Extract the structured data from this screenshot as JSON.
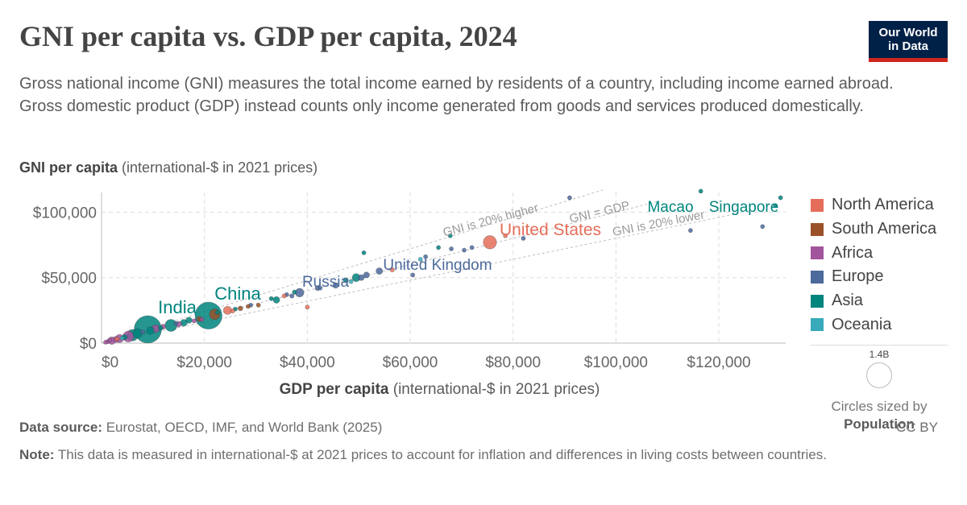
{
  "header": {
    "title": "GNI per capita vs. GDP per capita, 2024",
    "subtitle": "Gross national income (GNI) measures the total income earned by residents of a country, including income earned abroad. Gross domestic product (GDP) instead counts only income generated from goods and services produced domestically.",
    "logo_line1": "Our World",
    "logo_line2": "in Data"
  },
  "axes": {
    "y_label_bold": "GNI per capita",
    "y_label_rest": " (international-$ in 2021 prices)",
    "x_label_bold": "GDP per capita",
    "x_label_rest": " (international-$ in 2021 prices)"
  },
  "legend": {
    "items": [
      {
        "label": "North America",
        "color": "#e56e5a"
      },
      {
        "label": "South America",
        "color": "#9a5129"
      },
      {
        "label": "Africa",
        "color": "#a2559c"
      },
      {
        "label": "Europe",
        "color": "#4c6a9c"
      },
      {
        "label": "Asia",
        "color": "#00847e"
      },
      {
        "label": "Oceania",
        "color": "#38aaba"
      }
    ],
    "size_value": "1.4B",
    "size_caption": "Circles sized by",
    "size_variable": "Population"
  },
  "footer": {
    "source_label": "Data source:",
    "source_text": " Eurostat, OECD, IMF, and World Bank (2025)",
    "note_label": "Note:",
    "note_text": " This data is measured in international-$ at 2021 prices to account for inflation and differences in living costs between countries.",
    "license": "CC BY"
  },
  "chart_data": {
    "type": "scatter",
    "title": "GNI per capita vs. GDP per capita, 2024",
    "xlabel": "GDP per capita (international-$ in 2021 prices)",
    "ylabel": "GNI per capita (international-$ in 2021 prices)",
    "xlim": [
      0,
      133000
    ],
    "ylim": [
      0,
      115000
    ],
    "x_ticks": [
      0,
      20000,
      40000,
      60000,
      80000,
      100000,
      120000
    ],
    "x_tick_labels": [
      "$0",
      "$20,000",
      "$40,000",
      "$60,000",
      "$80,000",
      "$100,000",
      "$120,000"
    ],
    "y_ticks": [
      0,
      50000,
      100000
    ],
    "y_tick_labels": [
      "$0",
      "$50,000",
      "$100,000"
    ],
    "grid": true,
    "legend_position": "right",
    "colors": {
      "North America": "#e56e5a",
      "South America": "#9a5129",
      "Africa": "#a2559c",
      "Europe": "#4c6a9c",
      "Asia": "#00847e",
      "Oceania": "#38aaba"
    },
    "reference_lines": [
      {
        "label": "GNI is 20% higher",
        "ratio": 1.2
      },
      {
        "label": "GNI = GDP",
        "ratio": 1.0
      },
      {
        "label": "GNI is 20% lower",
        "ratio": 0.8
      }
    ],
    "points": [
      {
        "label": "India",
        "region": "Asia",
        "x": 9000,
        "y": 10500,
        "population": 1450000000,
        "show_label": true
      },
      {
        "label": "China",
        "region": "Asia",
        "x": 20800,
        "y": 21000,
        "population": 1410000000,
        "show_label": true
      },
      {
        "label": "Russia",
        "region": "Europe",
        "x": 38500,
        "y": 38500,
        "population": 144000000,
        "show_label": true
      },
      {
        "label": "United Kingdom",
        "region": "Europe",
        "x": 51500,
        "y": 52000,
        "population": 69000000,
        "show_label": true
      },
      {
        "label": "United States",
        "region": "North America",
        "x": 75500,
        "y": 77000,
        "population": 340000000,
        "show_label": true
      },
      {
        "label": "Macao",
        "region": "Asia",
        "x": 116500,
        "y": 116000,
        "population": 700000,
        "show_label": true
      },
      {
        "label": "Singapore",
        "region": "Asia",
        "x": 132000,
        "y": 111000,
        "population": 6000000,
        "show_label": true
      },
      {
        "label": "",
        "region": "Europe",
        "x": 128500,
        "y": 89000,
        "population": 670000,
        "show_label": false
      },
      {
        "label": "",
        "region": "Europe",
        "x": 114500,
        "y": 86000,
        "population": 5300000,
        "show_label": false
      },
      {
        "label": "",
        "region": "Europe",
        "x": 91000,
        "y": 111000,
        "population": 5500000,
        "show_label": false
      },
      {
        "label": "",
        "region": "Asia",
        "x": 67800,
        "y": 82000,
        "population": 3000000,
        "show_label": false
      },
      {
        "label": "",
        "region": "Asia",
        "x": 51000,
        "y": 69000,
        "population": 4500000,
        "show_label": false
      },
      {
        "label": "",
        "region": "Asia",
        "x": 65500,
        "y": 73000,
        "population": 5000000,
        "show_label": false
      },
      {
        "label": "",
        "region": "Europe",
        "x": 68000,
        "y": 72000,
        "population": 9000000,
        "show_label": false
      },
      {
        "label": "",
        "region": "Europe",
        "x": 70500,
        "y": 71000,
        "population": 10000000,
        "show_label": false
      },
      {
        "label": "",
        "region": "Europe",
        "x": 72000,
        "y": 73000,
        "population": 17000000,
        "show_label": false
      },
      {
        "label": "",
        "region": "Europe",
        "x": 63000,
        "y": 66000,
        "population": 11000000,
        "show_label": false
      },
      {
        "label": "",
        "region": "Europe",
        "x": 60500,
        "y": 52000,
        "population": 9000000,
        "show_label": false
      },
      {
        "label": "",
        "region": "Europe",
        "x": 82000,
        "y": 80000,
        "population": 9000000,
        "show_label": false
      },
      {
        "label": "",
        "region": "North America",
        "x": 78500,
        "y": 82000,
        "population": 500000,
        "show_label": false
      },
      {
        "label": "",
        "region": "Oceania",
        "x": 62000,
        "y": 64000,
        "population": 27000000,
        "show_label": false
      },
      {
        "label": "",
        "region": "Oceania",
        "x": 48500,
        "y": 47000,
        "population": 5200000,
        "show_label": false
      },
      {
        "label": "",
        "region": "North America",
        "x": 56500,
        "y": 56000,
        "population": 40000000,
        "show_label": false
      },
      {
        "label": "",
        "region": "Europe",
        "x": 54000,
        "y": 55000,
        "population": 84000000,
        "show_label": false
      },
      {
        "label": "",
        "region": "Europe",
        "x": 50500,
        "y": 50000,
        "population": 68000000,
        "show_label": false
      },
      {
        "label": "",
        "region": "Asia",
        "x": 49500,
        "y": 50000,
        "population": 124000000,
        "show_label": false
      },
      {
        "label": "",
        "region": "Asia",
        "x": 47500,
        "y": 48000,
        "population": 51000000,
        "show_label": false
      },
      {
        "label": "",
        "region": "Europe",
        "x": 45500,
        "y": 44000,
        "population": 59000000,
        "show_label": false
      },
      {
        "label": "",
        "region": "Europe",
        "x": 42000,
        "y": 42000,
        "population": 48000000,
        "show_label": false
      },
      {
        "label": "",
        "region": "Europe",
        "x": 42500,
        "y": 42000,
        "population": 10000000,
        "show_label": false
      },
      {
        "label": "",
        "region": "North America",
        "x": 40000,
        "y": 27500,
        "population": 5000000,
        "show_label": false
      },
      {
        "label": "",
        "region": "Asia",
        "x": 37500,
        "y": 39000,
        "population": 35000000,
        "show_label": false
      },
      {
        "label": "",
        "region": "Asia",
        "x": 34000,
        "y": 33000,
        "population": 85000000,
        "show_label": false
      },
      {
        "label": "",
        "region": "Asia",
        "x": 33000,
        "y": 34000,
        "population": 34000000,
        "show_label": false
      },
      {
        "label": "",
        "region": "Europe",
        "x": 37000,
        "y": 36000,
        "population": 38000000,
        "show_label": false
      },
      {
        "label": "",
        "region": "North America",
        "x": 35500,
        "y": 36000,
        "population": 3000000,
        "show_label": false
      },
      {
        "label": "",
        "region": "Europe",
        "x": 36000,
        "y": 37000,
        "population": 6000000,
        "show_label": false
      },
      {
        "label": "",
        "region": "South America",
        "x": 30500,
        "y": 29000,
        "population": 20000000,
        "show_label": false
      },
      {
        "label": "",
        "region": "South America",
        "x": 28500,
        "y": 28000,
        "population": 3400000,
        "show_label": false
      },
      {
        "label": "",
        "region": "South America",
        "x": 27000,
        "y": 26500,
        "population": 45000000,
        "show_label": false
      },
      {
        "label": "",
        "region": "Asia",
        "x": 26000,
        "y": 26000,
        "population": 20000000,
        "show_label": false
      },
      {
        "label": "",
        "region": "Europe",
        "x": 29000,
        "y": 29000,
        "population": 10000000,
        "show_label": false
      },
      {
        "label": "",
        "region": "North America",
        "x": 24500,
        "y": 25000,
        "population": 130000000,
        "show_label": false
      },
      {
        "label": "",
        "region": "South America",
        "x": 22000,
        "y": 22000,
        "population": 212000000,
        "show_label": false
      },
      {
        "label": "",
        "region": "Africa",
        "x": 19500,
        "y": 18000,
        "population": 5000000,
        "show_label": false
      },
      {
        "label": "",
        "region": "South America",
        "x": 19000,
        "y": 18500,
        "population": 52000000,
        "show_label": false
      },
      {
        "label": "",
        "region": "Asia",
        "x": 17000,
        "y": 17500,
        "population": 72000000,
        "show_label": false
      },
      {
        "label": "",
        "region": "Asia",
        "x": 16000,
        "y": 15500,
        "population": 90000000,
        "show_label": false
      },
      {
        "label": "",
        "region": "Africa",
        "x": 15000,
        "y": 14500,
        "population": 63000000,
        "show_label": false
      },
      {
        "label": "",
        "region": "Asia",
        "x": 13500,
        "y": 13500,
        "population": 280000000,
        "show_label": false
      },
      {
        "label": "",
        "region": "Africa",
        "x": 12000,
        "y": 12500,
        "population": 46000000,
        "show_label": false
      },
      {
        "label": "",
        "region": "Africa",
        "x": 10500,
        "y": 11000,
        "population": 115000000,
        "show_label": false
      },
      {
        "label": "",
        "region": "Asia",
        "x": 9500,
        "y": 9500,
        "population": 115000000,
        "show_label": false
      },
      {
        "label": "",
        "region": "Europe",
        "x": 8000,
        "y": 8500,
        "population": 38000000,
        "show_label": false
      },
      {
        "label": "",
        "region": "Asia",
        "x": 7000,
        "y": 7500,
        "population": 173000000,
        "show_label": false
      },
      {
        "label": "",
        "region": "Asia",
        "x": 6000,
        "y": 6000,
        "population": 250000000,
        "show_label": false
      },
      {
        "label": "",
        "region": "Africa",
        "x": 5200,
        "y": 5000,
        "population": 230000000,
        "show_label": false
      },
      {
        "label": "",
        "region": "Asia",
        "x": 4500,
        "y": 4500,
        "population": 55000000,
        "show_label": false
      },
      {
        "label": "",
        "region": "Africa",
        "x": 3500,
        "y": 3500,
        "population": 130000000,
        "show_label": false
      },
      {
        "label": "",
        "region": "Africa",
        "x": 2800,
        "y": 2800,
        "population": 70000000,
        "show_label": false
      },
      {
        "label": "",
        "region": "Africa",
        "x": 2000,
        "y": 1900,
        "population": 110000000,
        "show_label": false
      },
      {
        "label": "",
        "region": "Africa",
        "x": 1200,
        "y": 1100,
        "population": 30000000,
        "show_label": false
      },
      {
        "label": "",
        "region": "Africa",
        "x": 800,
        "y": 700,
        "population": 14000000,
        "show_label": false
      },
      {
        "label": "",
        "region": "North America",
        "x": 3000,
        "y": 3200,
        "population": 11000000,
        "show_label": false
      },
      {
        "label": "",
        "region": "Africa",
        "x": 1600,
        "y": 2400,
        "population": 20000000,
        "show_label": false
      },
      {
        "label": "",
        "region": "Asia",
        "x": 11500,
        "y": 11500,
        "population": 40000000,
        "show_label": false
      },
      {
        "label": "",
        "region": "Europe",
        "x": 14500,
        "y": 15000,
        "population": 10000000,
        "show_label": false
      },
      {
        "label": "",
        "region": "Asia",
        "x": 22500,
        "y": 23500,
        "population": 35000000,
        "show_label": false
      },
      {
        "label": "",
        "region": "North America",
        "x": 25500,
        "y": 24500,
        "population": 10000000,
        "show_label": false
      },
      {
        "label": "",
        "region": "Africa",
        "x": 18000,
        "y": 17000,
        "population": 2500000,
        "show_label": false
      },
      {
        "label": "",
        "region": "Oceania",
        "x": 4000,
        "y": 3800,
        "population": 10000000,
        "show_label": false
      },
      {
        "label": "",
        "region": "Asia",
        "x": 131000,
        "y": 105000,
        "population": 2700000,
        "show_label": false
      }
    ]
  }
}
